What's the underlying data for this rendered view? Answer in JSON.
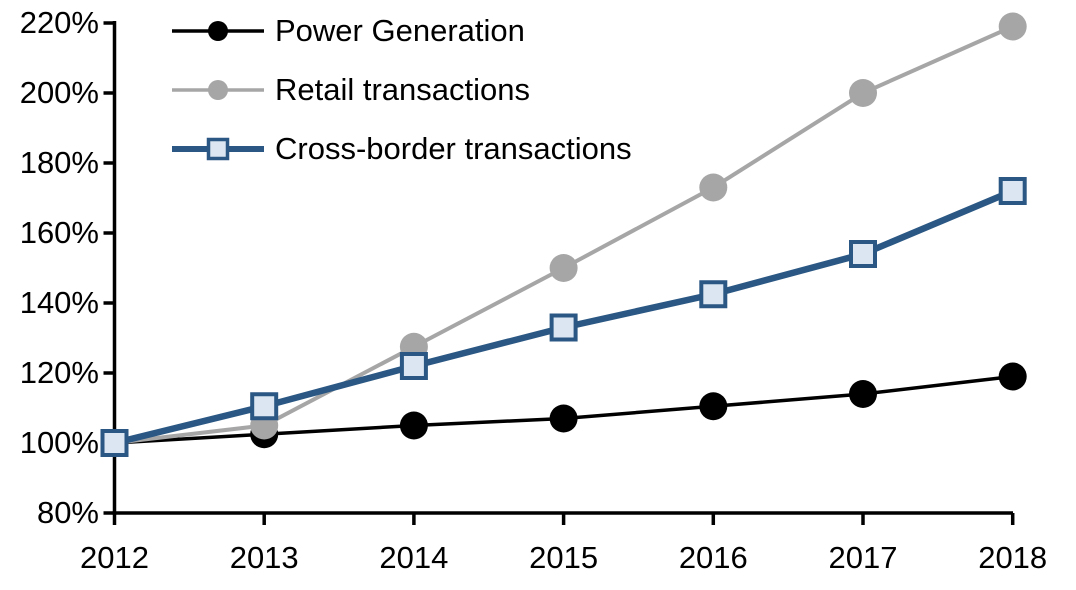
{
  "chart_data": {
    "type": "line",
    "title": "",
    "x_categories": [
      "2012",
      "2013",
      "2014",
      "2015",
      "2016",
      "2017",
      "2018"
    ],
    "series": [
      {
        "name": "Power Generation",
        "color": "#000000",
        "marker": "circle",
        "marker_fill": "#000000",
        "line_width": 3.5,
        "values": [
          100,
          102.5,
          105,
          107,
          110.5,
          114,
          119
        ]
      },
      {
        "name": "Retail transactions",
        "color": "#a6a6a6",
        "marker": "circle",
        "marker_fill": "#a6a6a6",
        "line_width": 4,
        "values": [
          100,
          105,
          127.5,
          150,
          173,
          200,
          219
        ]
      },
      {
        "name": "Cross-border transactions",
        "color": "#2a5783",
        "marker": "square",
        "marker_fill": "#dbe6f2",
        "line_width": 6.5,
        "values": [
          100,
          110.5,
          122,
          133,
          142.5,
          154,
          172
        ]
      }
    ],
    "y_axis": {
      "min": 80,
      "max": 220,
      "step": 20,
      "unit": "%",
      "tick_labels": [
        "80%",
        "100%",
        "120%",
        "140%",
        "160%",
        "180%",
        "200%",
        "220%"
      ]
    },
    "x_axis": {
      "tick_labels": [
        "2012",
        "2013",
        "2014",
        "2015",
        "2016",
        "2017",
        "2018"
      ]
    },
    "legend": {
      "position": "top-left",
      "entries": [
        "Power Generation",
        "Retail transactions",
        "Cross-border transactions"
      ]
    },
    "grid": false,
    "background": "#ffffff",
    "axis_color": "#000000"
  }
}
